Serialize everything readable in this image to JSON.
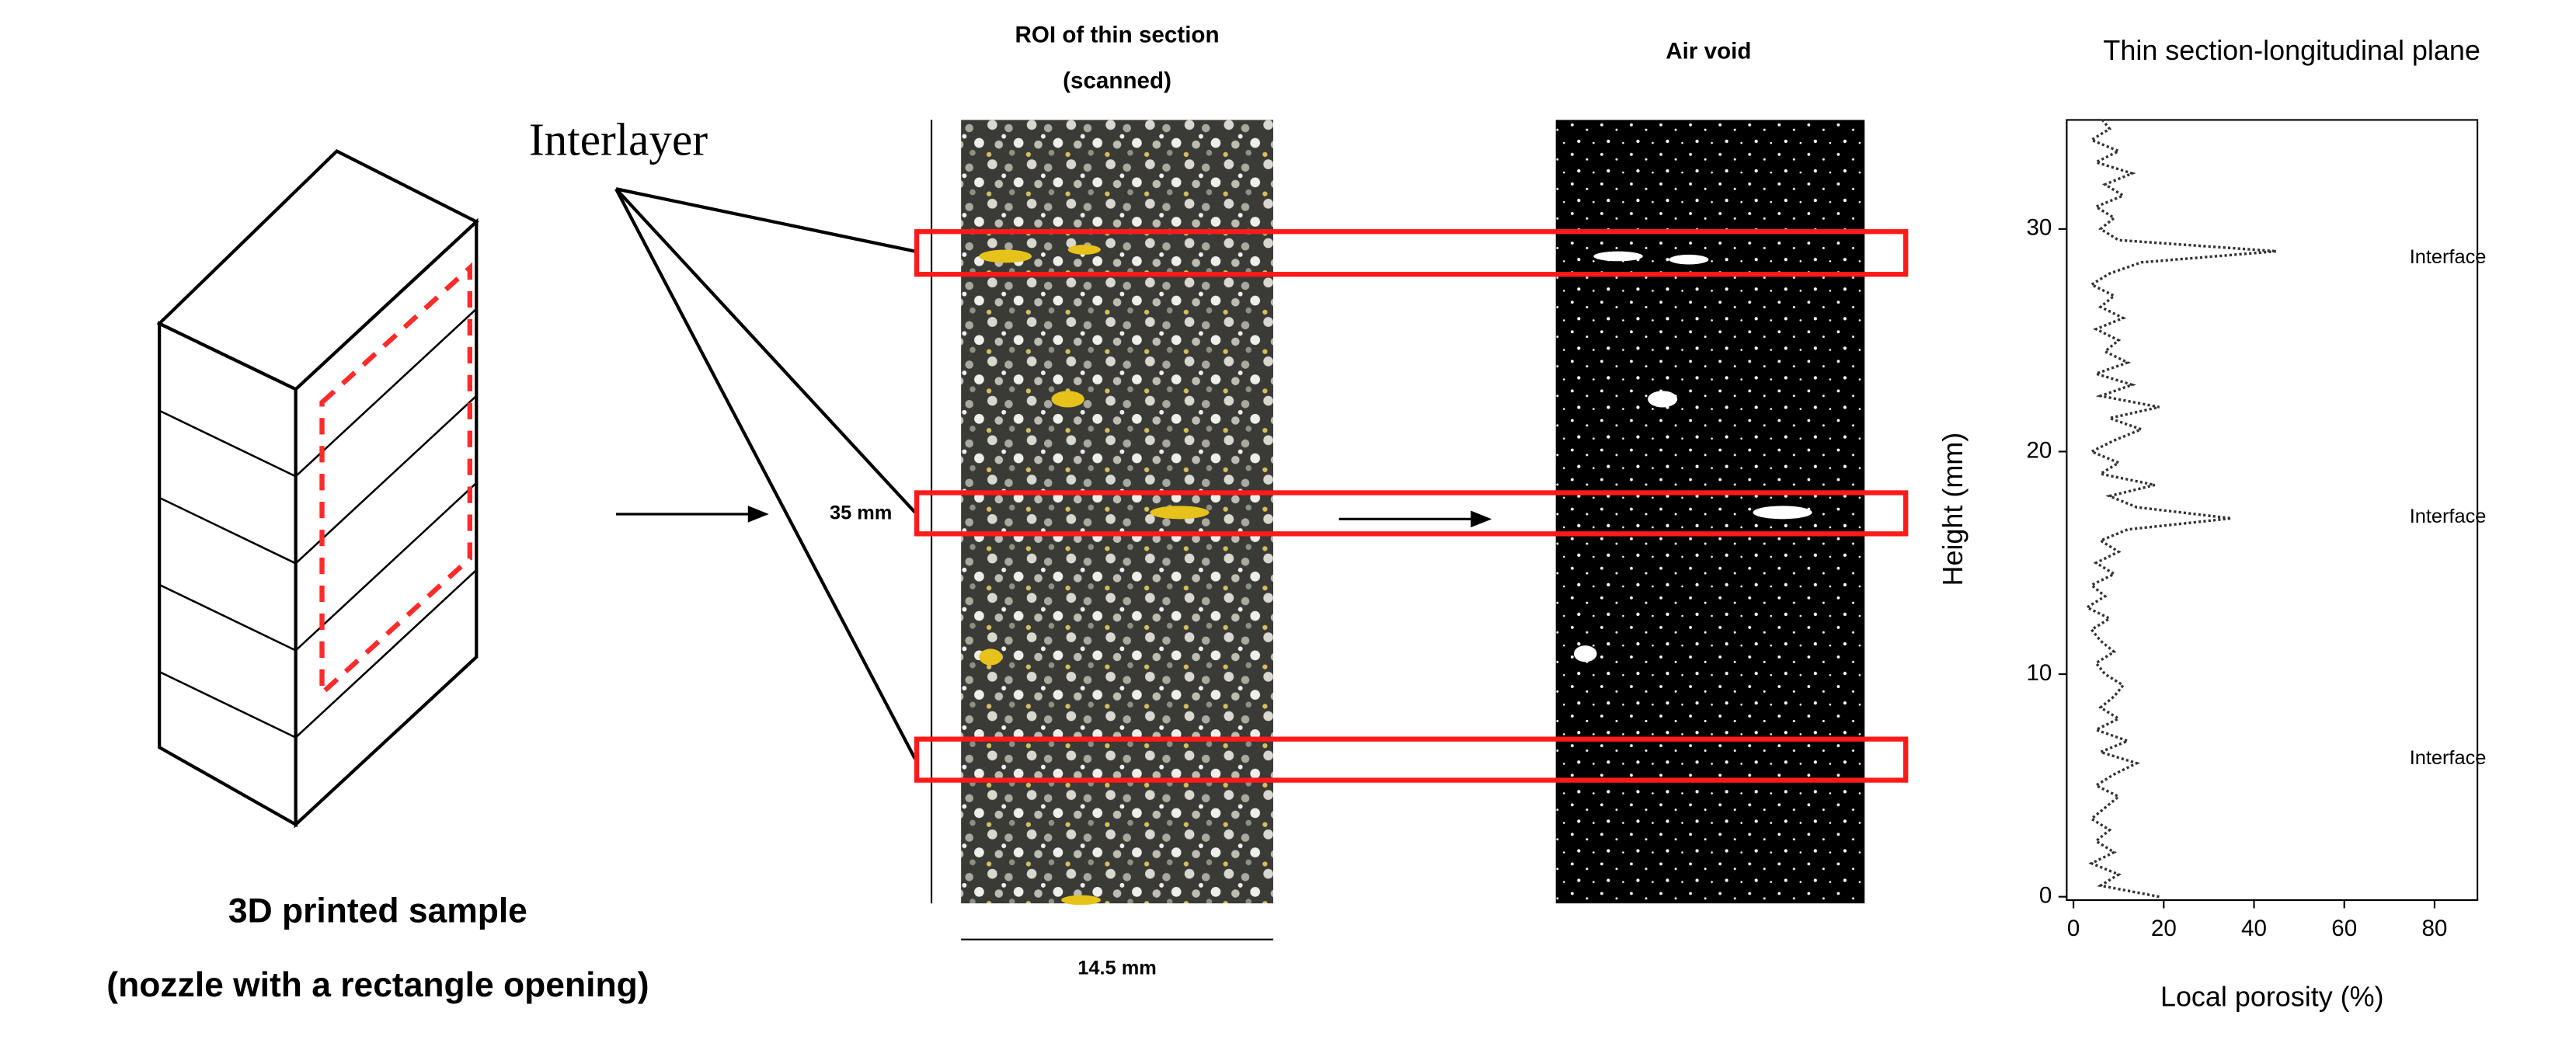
{
  "sample": {
    "label": "3D printed sample",
    "caption": "(nozzle with a rectangle opening)"
  },
  "interlayer_label": "Interlayer",
  "scan": {
    "title_line1": "ROI of thin section",
    "title_line2": "(scanned)",
    "height_label": "35 mm",
    "width_label": "14.5 mm"
  },
  "air_void": {
    "title": "Air void"
  },
  "chart_data": {
    "type": "line",
    "title": "Thin section-longitudinal plane",
    "xlabel": "Local porosity (%)",
    "ylabel": "Height (mm)",
    "annotations": [
      "Interface",
      "Interface",
      "Interface"
    ],
    "color": "#333333",
    "xlim": [
      -1.5,
      89.5
    ],
    "ylim": [
      -0.15,
      34.9
    ],
    "xticks": [
      0,
      20,
      40,
      60,
      80
    ],
    "yticks": [
      0,
      10,
      20,
      30
    ],
    "y": [
      0,
      0.5,
      1,
      1.5,
      2,
      2.5,
      3,
      3.5,
      4,
      4.5,
      5,
      5.5,
      6,
      6.5,
      7,
      7.5,
      8,
      8.5,
      9,
      9.5,
      10,
      10.5,
      11,
      11.5,
      12,
      12.5,
      13,
      13.5,
      14,
      14.5,
      15,
      15.5,
      16,
      16.5,
      17,
      17.5,
      18,
      18.5,
      19,
      19.5,
      20,
      20.5,
      21,
      21.5,
      22,
      22.5,
      23,
      23.5,
      24,
      24.5,
      25,
      25.5,
      26,
      26.5,
      27,
      27.5,
      28,
      28.5,
      29,
      29.5,
      30,
      30.5,
      31,
      31.5,
      32,
      32.5,
      33,
      33.5,
      34,
      34.5,
      35
    ],
    "values": [
      19,
      6,
      10,
      4,
      9,
      5,
      8,
      4,
      7,
      10,
      5,
      9,
      14,
      6,
      12,
      5,
      10,
      6,
      9,
      11,
      7,
      5,
      9,
      6,
      4,
      8,
      3,
      7,
      4,
      9,
      5,
      10,
      6,
      12,
      35,
      14,
      8,
      18,
      6,
      10,
      4,
      9,
      15,
      8,
      19,
      6,
      13,
      5,
      12,
      7,
      10,
      5,
      11,
      6,
      9,
      4,
      8,
      15,
      45,
      10,
      6,
      9,
      5,
      11,
      7,
      13,
      5,
      10,
      4,
      8,
      6
    ]
  }
}
